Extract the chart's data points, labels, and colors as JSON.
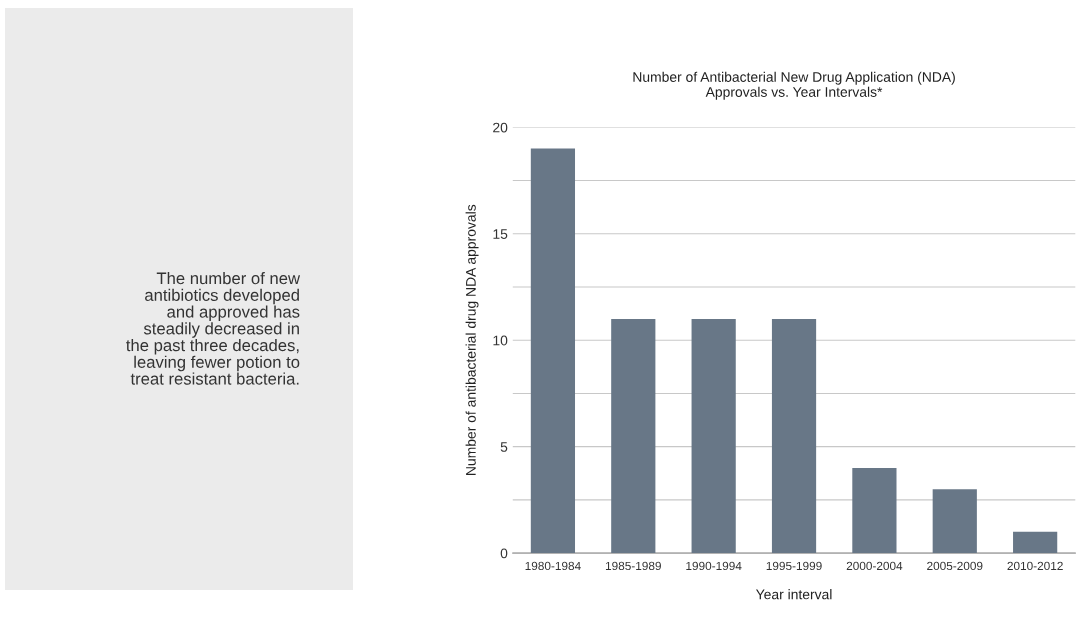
{
  "chart_data": {
    "type": "bar",
    "title": "Number of Antibacterial New Drug Application (NDA)\nApprovals vs. Year Intervals*",
    "xlabel": "Year interval",
    "ylabel": "Number of antibacterial drug NDA approvals",
    "categories": [
      "1980-1984",
      "1985-1989",
      "1990-1994",
      "1995-1999",
      "2000-2004",
      "2005-2009",
      "2010-2012"
    ],
    "values": [
      19,
      11,
      11,
      11,
      4,
      3,
      1
    ],
    "color": "#687787",
    "ylim": [
      0,
      20
    ],
    "yticks": [
      0,
      {
        "value": 2.5,
        "label": null
      },
      5,
      {
        "value": 7.5,
        "label": null
      },
      10,
      {
        "value": 12.5,
        "label": null
      },
      15,
      {
        "value": 17.5,
        "label": null
      },
      20
    ],
    "grid": "y",
    "legend": false,
    "annotations": [
      "The number of new\nantibiotics developed\nand approved has\nsteadily decreased in\nthe past three decades,\nleaving fewer potion to\ntreat resistant bacteria."
    ]
  }
}
